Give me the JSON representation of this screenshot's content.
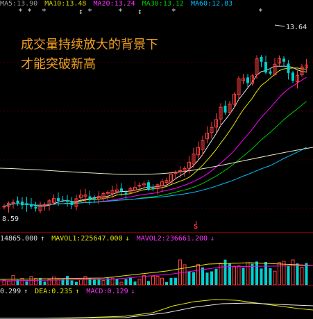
{
  "top_bar": {
    "ma_items": [
      {
        "label": "MA5:13.90",
        "color": "#bbbbbb"
      },
      {
        "label": "MA10:13.48",
        "color": "#e6e600"
      },
      {
        "label": "MA20:13.24",
        "color": "#ff00ff"
      },
      {
        "label": "MA30:13.12",
        "color": "#00cc00"
      },
      {
        "label": "MA60:12.83",
        "color": "#00bfff"
      }
    ],
    "markers": [
      "* *",
      "*",
      "↕ *",
      "*",
      "↕",
      "*",
      "*"
    ]
  },
  "annotation": {
    "line1": "成交量持续放大的背景下",
    "line2": "才能突破新高"
  },
  "price": {
    "high_label": "13.64",
    "low_label": "8.59",
    "signal_glyph": "S"
  },
  "volume_strip": {
    "volume": "14865.000",
    "mavol1": "MAVOL1:225647.000",
    "mavol2": "MAVOL2:236661.200",
    "up_arrow": "↑",
    "down_arrow": "↓"
  },
  "macd_strip": {
    "dif": "0.299",
    "dea": "DEA:0.235",
    "macd": "MACD:0.129",
    "up_arrow": "↑",
    "down_arrow": "↓"
  },
  "colors": {
    "up": "#ff4040",
    "down": "#00d0d0",
    "ma5": "#e6e6e6",
    "ma10": "#e6e600",
    "ma20": "#ff00ff",
    "ma30": "#00cc00",
    "ma60": "#00bfff",
    "long": "#e8e8c8"
  }
}
